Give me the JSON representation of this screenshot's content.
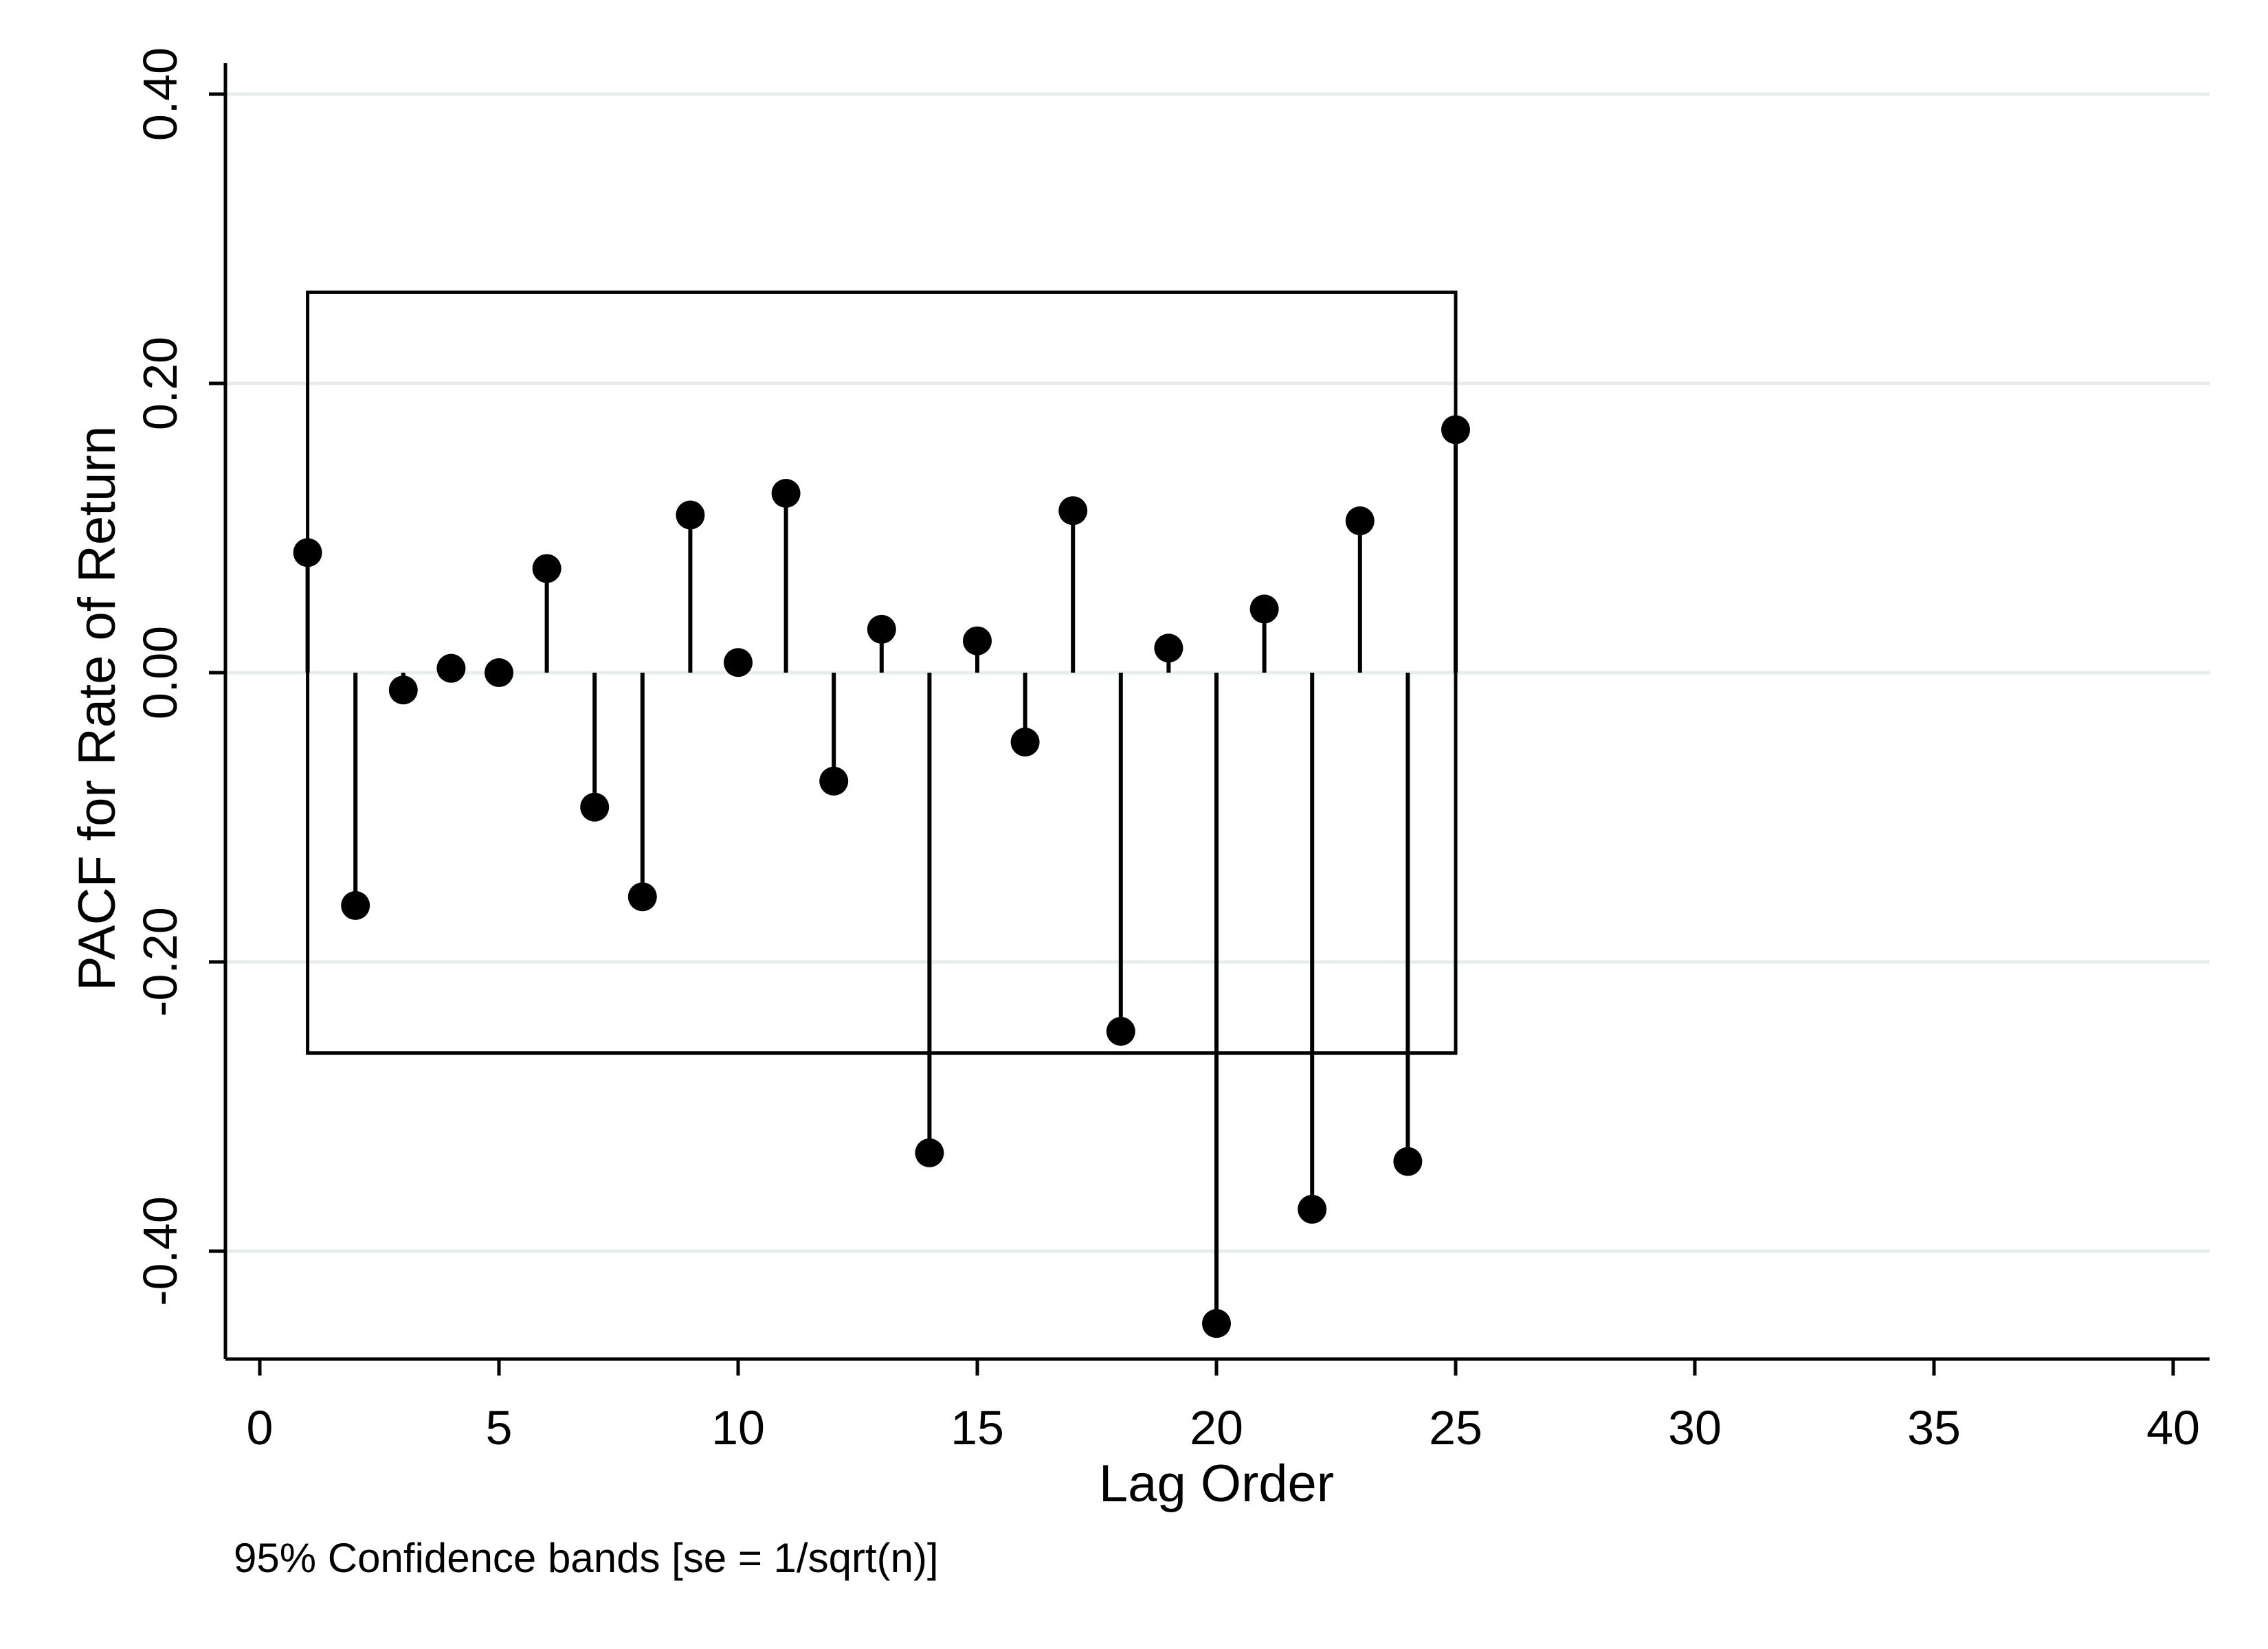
{
  "chart_data": {
    "type": "stem",
    "xlabel": "Lag Order",
    "ylabel": "PACF for Rate of Return",
    "note": "95% Confidence bands [se = 1/sqrt(n)]",
    "xlim": [
      0,
      40
    ],
    "ylim": [
      -0.4,
      0.4
    ],
    "x_ticks": [
      0,
      5,
      10,
      15,
      20,
      25,
      30,
      35,
      40
    ],
    "y_ticks": [
      -0.4,
      -0.2,
      0.0,
      0.2,
      0.4
    ],
    "y_tick_labels": [
      "-0.40",
      "-0.20",
      "0.00",
      "0.20",
      "0.40"
    ],
    "grid": true,
    "confidence_band": {
      "x_from": 1,
      "x_to": 25,
      "upper": 0.263,
      "lower": -0.263
    },
    "series": [
      {
        "lags": [
          1,
          2,
          3,
          4,
          5,
          6,
          7,
          8,
          9,
          10,
          11,
          12,
          13,
          14,
          15,
          16,
          17,
          18,
          19,
          20,
          21,
          22,
          23,
          24,
          25
        ],
        "values": [
          0.083,
          -0.161,
          -0.012,
          0.003,
          0.0,
          0.072,
          -0.093,
          -0.155,
          0.109,
          0.007,
          0.124,
          -0.075,
          0.03,
          -0.332,
          0.022,
          -0.048,
          0.112,
          -0.248,
          0.017,
          -0.45,
          0.044,
          -0.371,
          0.105,
          -0.338,
          0.168
        ]
      }
    ]
  }
}
